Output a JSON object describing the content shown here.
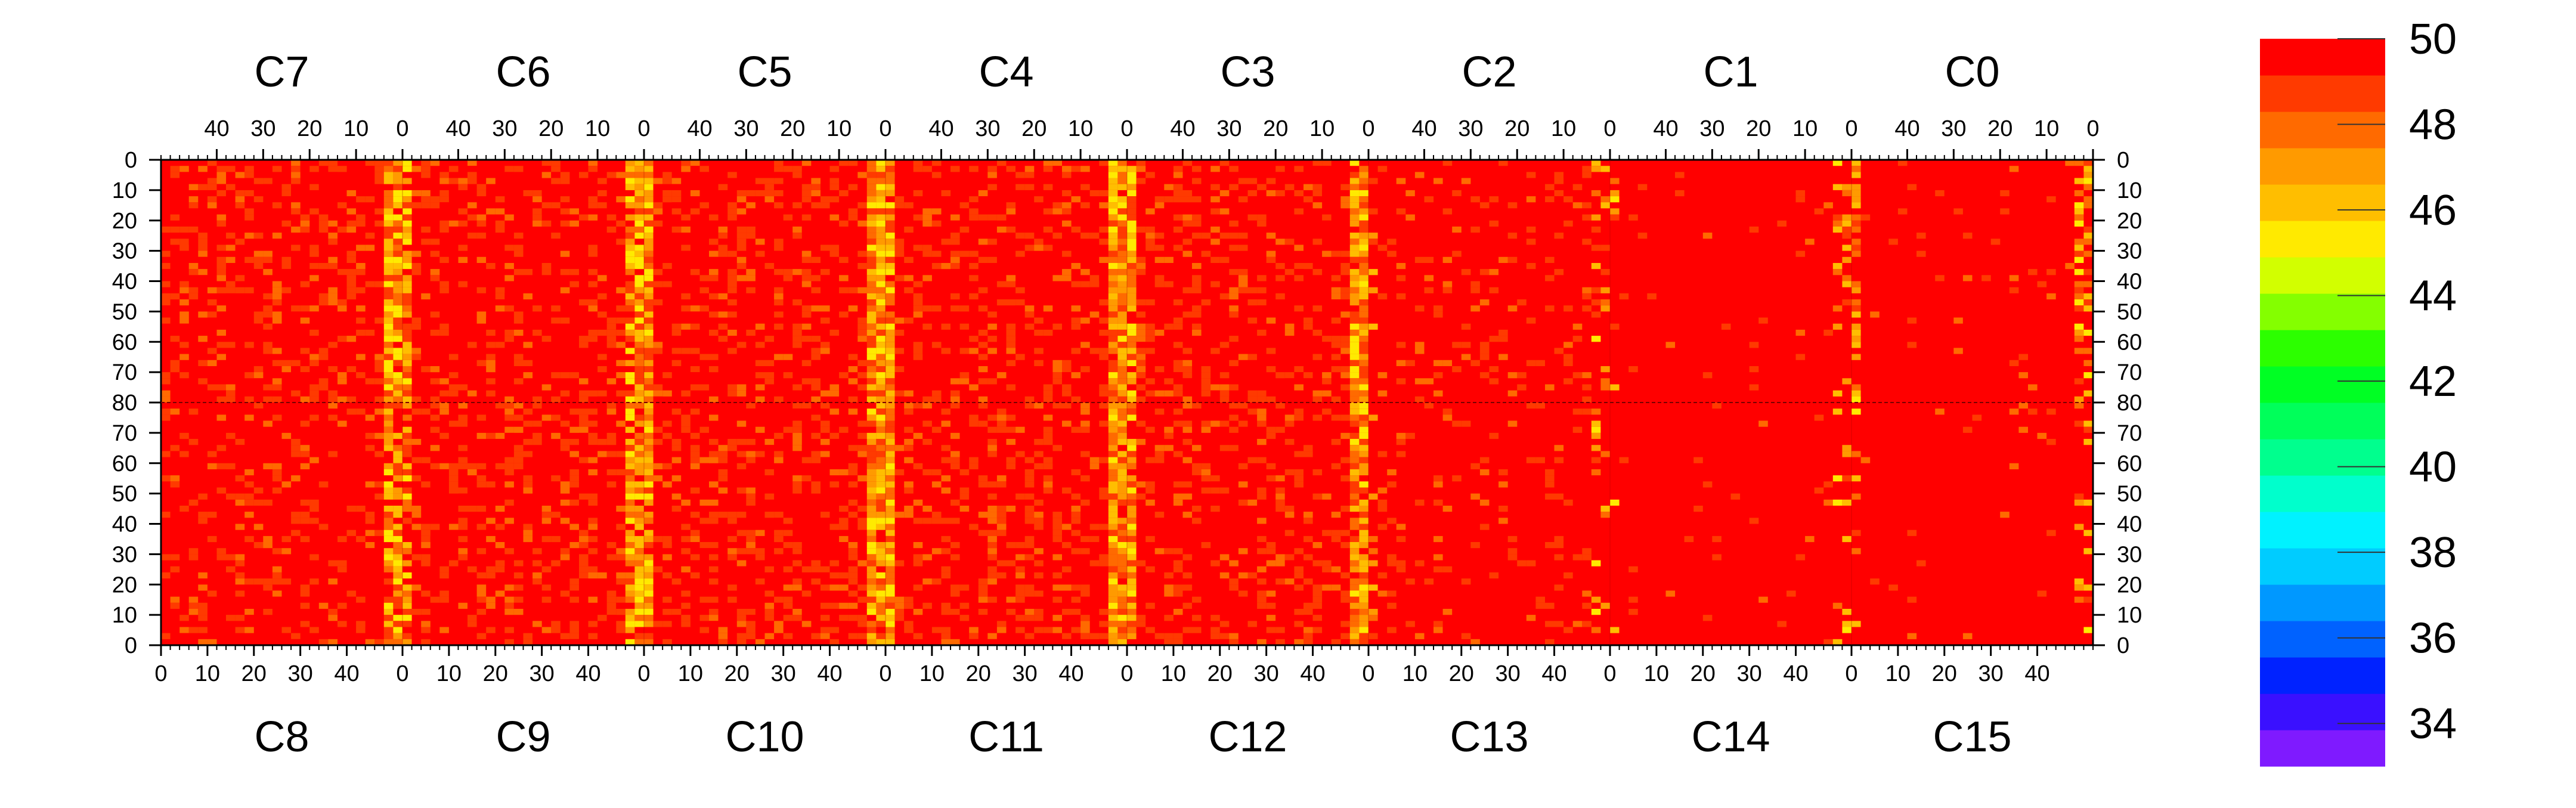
{
  "chart_data": {
    "type": "heatmap",
    "top_chip_labels": [
      "C7",
      "C6",
      "C5",
      "C4",
      "C3",
      "C2",
      "C1",
      "C0"
    ],
    "bottom_chip_labels": [
      "C8",
      "C9",
      "C10",
      "C11",
      "C12",
      "C13",
      "C14",
      "C15"
    ],
    "top_x_tick_labels": [
      "40",
      "30",
      "20",
      "10",
      "0"
    ],
    "bottom_x_tick_labels": [
      "0",
      "10",
      "20",
      "30",
      "40"
    ],
    "y_tick_labels_top_half": [
      "0",
      "10",
      "20",
      "30",
      "40",
      "50",
      "60",
      "70",
      "80"
    ],
    "y_tick_labels_bottom_half": [
      "70",
      "60",
      "50",
      "40",
      "30",
      "20",
      "10",
      "0"
    ],
    "columns_per_chip": 52,
    "rows_per_half": 80,
    "zlim": [
      33,
      50
    ],
    "colorbar_tick_labels": [
      "50",
      "48",
      "46",
      "44",
      "42",
      "40",
      "38",
      "36",
      "34"
    ],
    "colorbar_colors": [
      "#7f1aff",
      "#3a10ff",
      "#0022ff",
      "#0062ff",
      "#0098ff",
      "#00ccff",
      "#00f2ff",
      "#00ffcc",
      "#00ff8e",
      "#00ff5a",
      "#00ff24",
      "#2cff00",
      "#84ff00",
      "#d2ff00",
      "#ffea00",
      "#ffbe00",
      "#ff9a00",
      "#ff6a00",
      "#ff3a00",
      "#ff0000"
    ],
    "typical_pixel_value": 50,
    "edge_column_typical_value": 46,
    "grid": false,
    "legend": "right colorbar"
  }
}
